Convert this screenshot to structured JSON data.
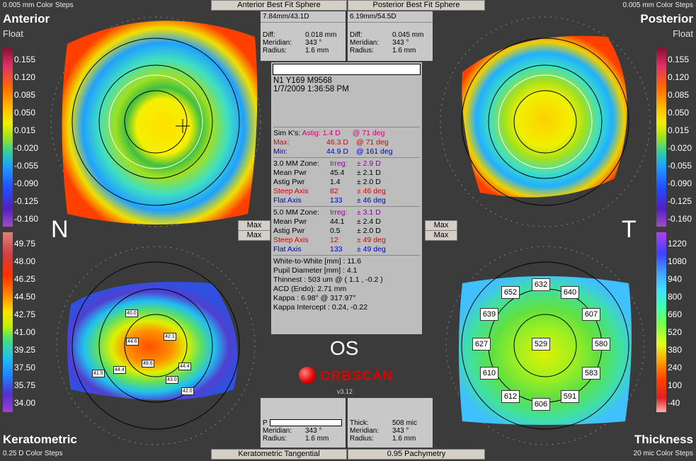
{
  "top_left": {
    "title": "Anterior",
    "subtitle": "Float",
    "steps": "0.005 mm Color Steps"
  },
  "top_right": {
    "title": "Posterior",
    "subtitle": "Float",
    "steps": "0.005 mm Color Steps"
  },
  "bottom_left": {
    "title": "Keratometric",
    "steps": "0.25 D Color Steps"
  },
  "bottom_right": {
    "title": "Thickness",
    "steps": "20 mic Color Steps"
  },
  "tabs": {
    "anterior": "Anterior Best Fit Sphere",
    "posterior": "Posterior Best Fit Sphere",
    "kerato": "Keratometric Tangential",
    "pachy": "0.95 Pachymetry"
  },
  "anterior_box": {
    "header": "7.84mm/43.1D",
    "diff_label": "Diff:",
    "diff": "0.018 mm",
    "meridian_label": "Meridian:",
    "meridian": "343 °",
    "radius_label": "Radius:",
    "radius": "1.6 mm"
  },
  "posterior_box": {
    "header": "6.19mm/54.5D",
    "diff_label": "Diff:",
    "diff": "0.045 mm",
    "meridian_label": "Meridian:",
    "meridian": "343 °",
    "radius_label": "Radius:",
    "radius": "1.6 mm"
  },
  "bottom_left_box": {
    "p_label": "P",
    "meridian_label": "Meridian:",
    "meridian": "343 °",
    "radius_label": "Radius:",
    "radius": "1.6 mm"
  },
  "bottom_right_box": {
    "thick_label": "Thick:",
    "thick": "508 mic",
    "meridian_label": "Meridian:",
    "meridian": "343 °",
    "radius_label": "Radius:",
    "radius": "1.6 mm"
  },
  "max_label": "Max",
  "side_letters": {
    "left": "N",
    "right": "T"
  },
  "eye": "OS",
  "brand": "ORBSCAN",
  "version": "v3.12",
  "info": {
    "patient": "N1  Y169  M9568",
    "date": "1/7/2009 1:36:58 PM",
    "simk_label": "Sim K's:",
    "astig_label": "Astig:",
    "astig_val": "1.4 D",
    "astig_deg": "@ 71 deg",
    "max_label": "Max:",
    "max_val": "46.3 D",
    "max_deg": "@ 71 deg",
    "min_label": "Min:",
    "min_val": "44.9 D",
    "min_deg": "@ 161 deg",
    "z3_label": "3.0 MM Zone:",
    "z3_irreg_label": "Irreg:",
    "z3_irreg": "± 2.9 D",
    "z3_mean_label": "Mean Pwr",
    "z3_mean": "45.4",
    "z3_mean_pm": "± 2.1 D",
    "z3_astig_label": "Astig Pwr",
    "z3_astig": "1.4",
    "z3_astig_pm": "± 2.0 D",
    "z3_steep_label": "Steep Axis",
    "z3_steep": "82",
    "z3_steep_pm": "± 46 deg",
    "z3_flat_label": "Flat Axis",
    "z3_flat": "133",
    "z3_flat_pm": "± 46 deg",
    "z5_label": "5.0 MM Zone:",
    "z5_irreg_label": "Irreg:",
    "z5_irreg": "± 3.1 D",
    "z5_mean_label": "Mean Pwr",
    "z5_mean": "44.1",
    "z5_mean_pm": "± 2.4 D",
    "z5_astig_label": "Astig Pwr",
    "z5_astig": "0.5",
    "z5_astig_pm": "± 2.0 D",
    "z5_steep_label": "Steep Axis",
    "z5_steep": "12",
    "z5_steep_pm": "± 49 deg",
    "z5_flat_label": "Flat Axis",
    "z5_flat": "133",
    "z5_flat_pm": "± 49 deg",
    "wtw": "White-to-White [mm] : 11.6",
    "pupil": "Pupil Diameter [mm] :  4.1",
    "thinnest": "Thinnest : 503 um @ ( 1.1 , -0.2 )",
    "acd": "ACD (Endo): 2.71 mm",
    "kappa": "Kappa : 6.98° @ 317.97°",
    "kappa_int": "Kappa Intercept : 0.24, -0.22"
  },
  "legend_float": [
    "0.155",
    "0.120",
    "0.085",
    "0.050",
    "0.015",
    "-0.020",
    "-0.055",
    "-0.090",
    "-0.125",
    "-0.160"
  ],
  "legend_kerato": [
    "49.75",
    "48.00",
    "46.25",
    "44.50",
    "42.75",
    "41.00",
    "39.25",
    "37.50",
    "35.75",
    "34.00"
  ],
  "legend_thick": [
    "1220",
    "1080",
    "940",
    "800",
    "660",
    "520",
    "380",
    "240",
    "100",
    "-40"
  ],
  "colors": {
    "float_scale": [
      "#8a1030",
      "#e0306a",
      "#ff6a00",
      "#ffc000",
      "#f0f000",
      "#a0e020",
      "#30d0a0",
      "#20a0ff",
      "#2050ff",
      "#5020c0",
      "#a050c0"
    ],
    "kerato_scale": [
      "#e08080",
      "#d04040",
      "#ff3000",
      "#ff8000",
      "#ffe000",
      "#c0f000",
      "#40e080",
      "#20c0f0",
      "#2080ff",
      "#5030d0",
      "#a040d0"
    ],
    "thick_scale": [
      "#b040f0",
      "#4040ff",
      "#40a0ff",
      "#40e0ff",
      "#40ffb0",
      "#80ff40",
      "#e0ff20",
      "#ffa000",
      "#ff4000",
      "#e02020",
      "#ffb0b0"
    ]
  },
  "pachy_values": [
    "632",
    "652",
    "640",
    "639",
    "607",
    "627",
    "529",
    "580",
    "610",
    "583",
    "612",
    "591",
    "606"
  ],
  "kerato_labels": [
    "40.0",
    "44.6",
    "42.1",
    "41.5",
    "44.4",
    "49.6",
    "44.4",
    "43.0",
    "42.0"
  ]
}
